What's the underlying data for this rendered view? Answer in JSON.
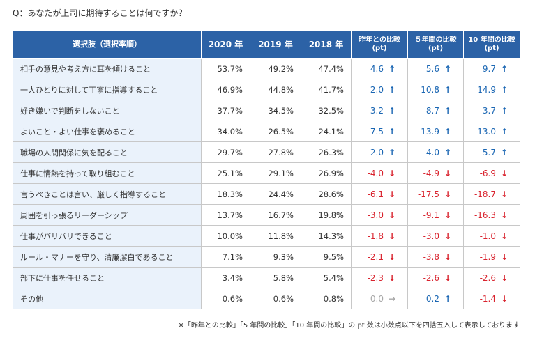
{
  "question": "Q：あなたが上司に期待することは何ですか？",
  "headers": {
    "choice": "選択肢（選択率順）",
    "y2020": "2020 年",
    "y2019": "2019 年",
    "y2018": "2018 年",
    "cmp1_line1": "昨年との比較",
    "cmp1_line2": "(pt)",
    "cmp5_line1": "５年間の比較",
    "cmp5_line2": "(pt)",
    "cmp10_line1": "10 年間の比較",
    "cmp10_line2": "(pt)"
  },
  "arrows": {
    "up": "↑",
    "down": "↓",
    "flat": "→"
  },
  "colors": {
    "header_bg": "#2c62a6",
    "choice_bg": "#eaf2fb",
    "up": "#1a66b3",
    "down": "#d9232e",
    "flat": "#a8a8a8"
  },
  "rows": [
    {
      "choice": "相手の意見や考え方に耳を傾けること",
      "y2020": "53.7%",
      "y2019": "49.2%",
      "y2018": "47.4%",
      "c1": "4.6",
      "c1d": "up",
      "c5": "5.6",
      "c5d": "up",
      "c10": "9.7",
      "c10d": "up"
    },
    {
      "choice": "一人ひとりに対して丁寧に指導すること",
      "y2020": "46.9%",
      "y2019": "44.8%",
      "y2018": "41.7%",
      "c1": "2.0",
      "c1d": "up",
      "c5": "10.8",
      "c5d": "up",
      "c10": "14.9",
      "c10d": "up"
    },
    {
      "choice": "好き嫌いで判断をしないこと",
      "y2020": "37.7%",
      "y2019": "34.5%",
      "y2018": "32.5%",
      "c1": "3.2",
      "c1d": "up",
      "c5": "8.7",
      "c5d": "up",
      "c10": "3.7",
      "c10d": "up"
    },
    {
      "choice": "よいこと・よい仕事を褒めること",
      "y2020": "34.0%",
      "y2019": "26.5%",
      "y2018": "24.1%",
      "c1": "7.5",
      "c1d": "up",
      "c5": "13.9",
      "c5d": "up",
      "c10": "13.0",
      "c10d": "up"
    },
    {
      "choice": "職場の人間関係に気を配ること",
      "y2020": "29.7%",
      "y2019": "27.8%",
      "y2018": "26.3%",
      "c1": "2.0",
      "c1d": "up",
      "c5": "4.0",
      "c5d": "up",
      "c10": "5.7",
      "c10d": "up"
    },
    {
      "choice": "仕事に情熱を持って取り組むこと",
      "y2020": "25.1%",
      "y2019": "29.1%",
      "y2018": "26.9%",
      "c1": "-4.0",
      "c1d": "down",
      "c5": "-4.9",
      "c5d": "down",
      "c10": "-6.9",
      "c10d": "down"
    },
    {
      "choice": "言うべきことは言い、厳しく指導すること",
      "y2020": "18.3%",
      "y2019": "24.4%",
      "y2018": "28.6%",
      "c1": "-6.1",
      "c1d": "down",
      "c5": "-17.5",
      "c5d": "down",
      "c10": "-18.7",
      "c10d": "down"
    },
    {
      "choice": "周囲を引っ張るリーダーシップ",
      "y2020": "13.7%",
      "y2019": "16.7%",
      "y2018": "19.8%",
      "c1": "-3.0",
      "c1d": "down",
      "c5": "-9.1",
      "c5d": "down",
      "c10": "-16.3",
      "c10d": "down"
    },
    {
      "choice": "仕事がバリバリできること",
      "y2020": "10.0%",
      "y2019": "11.8%",
      "y2018": "14.3%",
      "c1": "-1.8",
      "c1d": "down",
      "c5": "-3.0",
      "c5d": "down",
      "c10": "-1.0",
      "c10d": "down"
    },
    {
      "choice": "ルール・マナーを守り、清廉潔白であること",
      "y2020": "7.1%",
      "y2019": "9.3%",
      "y2018": "9.5%",
      "c1": "-2.1",
      "c1d": "down",
      "c5": "-3.8",
      "c5d": "down",
      "c10": "-1.9",
      "c10d": "down"
    },
    {
      "choice": "部下に仕事を任せること",
      "y2020": "3.4%",
      "y2019": "5.8%",
      "y2018": "5.4%",
      "c1": "-2.3",
      "c1d": "down",
      "c5": "-2.6",
      "c5d": "down",
      "c10": "-2.6",
      "c10d": "down"
    },
    {
      "choice": "その他",
      "y2020": "0.6%",
      "y2019": "0.6%",
      "y2018": "0.8%",
      "c1": "0.0",
      "c1d": "flat",
      "c5": "0.2",
      "c5d": "up",
      "c10": "-1.4",
      "c10d": "down"
    }
  ],
  "note": "※「昨年との比較」「5 年間の比較」「10 年間の比較」の pt 数は小数点以下を四捨五入して表示しております",
  "chart_data": {
    "type": "table",
    "categories": [
      "相手の意見や考え方に耳を傾けること",
      "一人ひとりに対して丁寧に指導すること",
      "好き嫌いで判断をしないこと",
      "よいこと・よい仕事を褒めること",
      "職場の人間関係に気を配ること",
      "仕事に情熱を持って取り組むこと",
      "言うべきことは言い、厳しく指導すること",
      "周囲を引っ張るリーダーシップ",
      "仕事がバリバリできること",
      "ルール・マナーを守り、清廉潔白であること",
      "部下に仕事を任せること",
      "その他"
    ],
    "series": [
      {
        "name": "2020 年",
        "values": [
          53.7,
          46.9,
          37.7,
          34.0,
          29.7,
          25.1,
          18.3,
          13.7,
          10.0,
          7.1,
          3.4,
          0.6
        ]
      },
      {
        "name": "2019 年",
        "values": [
          49.2,
          44.8,
          34.5,
          26.5,
          27.8,
          29.1,
          24.4,
          16.7,
          11.8,
          9.3,
          5.8,
          0.6
        ]
      },
      {
        "name": "2018 年",
        "values": [
          47.4,
          41.7,
          32.5,
          24.1,
          26.3,
          26.9,
          28.6,
          19.8,
          14.3,
          9.5,
          5.4,
          0.8
        ]
      },
      {
        "name": "昨年との比較 (pt)",
        "values": [
          4.6,
          2.0,
          3.2,
          7.5,
          2.0,
          -4.0,
          -6.1,
          -3.0,
          -1.8,
          -2.1,
          -2.3,
          0.0
        ]
      },
      {
        "name": "５年間の比較 (pt)",
        "values": [
          5.6,
          10.8,
          8.7,
          13.9,
          4.0,
          -4.9,
          -17.5,
          -9.1,
          -3.0,
          -3.8,
          -2.6,
          0.2
        ]
      },
      {
        "name": "10 年間の比較 (pt)",
        "values": [
          9.7,
          14.9,
          3.7,
          13.0,
          5.7,
          -6.9,
          -18.7,
          -16.3,
          -1.0,
          -1.9,
          -2.6,
          -1.4
        ]
      }
    ]
  }
}
